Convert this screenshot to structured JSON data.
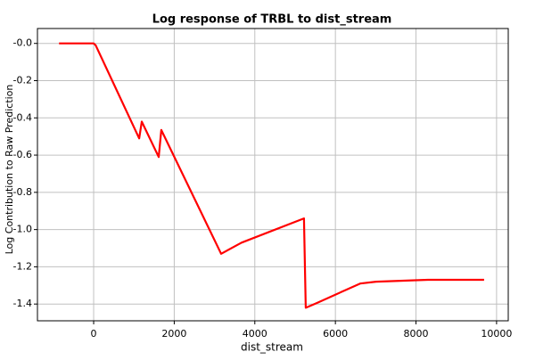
{
  "chart_data": {
    "type": "line",
    "title": "Log response of TRBL to dist_stream",
    "x_label": "dist_stream",
    "y_label": "Log Contribution to Raw Prediction",
    "x": [
      -860,
      0,
      50,
      1130,
      1195,
      1615,
      1680,
      3165,
      3670,
      5220,
      5265,
      5530,
      6615,
      7010,
      8295,
      9690
    ],
    "series": [
      {
        "name": "TRBL",
        "color": "#ff0000",
        "values": [
          0,
          0,
          -0.01,
          -0.51,
          -0.42,
          -0.61,
          -0.465,
          -1.13,
          -1.07,
          -0.94,
          -1.42,
          -1.395,
          -1.29,
          -1.28,
          -1.27,
          -1.27
        ]
      }
    ],
    "xlim": [
      -1395,
      10290
    ],
    "ylim": [
      -1.49,
      0.08
    ],
    "xticks": [
      0,
      2000,
      4000,
      6000,
      8000,
      10000
    ],
    "yticks": [
      {
        "value": 0,
        "label": "-0.0"
      },
      -0.2,
      -0.4,
      -0.6,
      -0.8,
      {
        "value": -1,
        "label": "-1.0"
      },
      -1.2,
      -1.4
    ],
    "grid": true
  }
}
